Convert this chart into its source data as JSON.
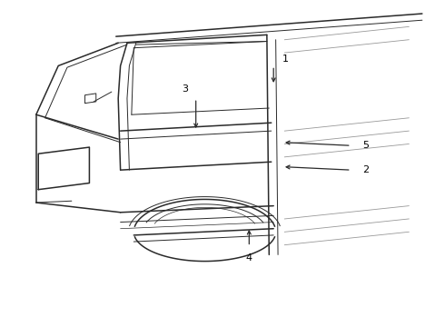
{
  "bg_color": "#ffffff",
  "line_color": "#2a2a2a",
  "label_color": "#000000",
  "fig_width": 4.9,
  "fig_height": 3.6,
  "dpi": 100,
  "shade_color": "#bbbbbb"
}
